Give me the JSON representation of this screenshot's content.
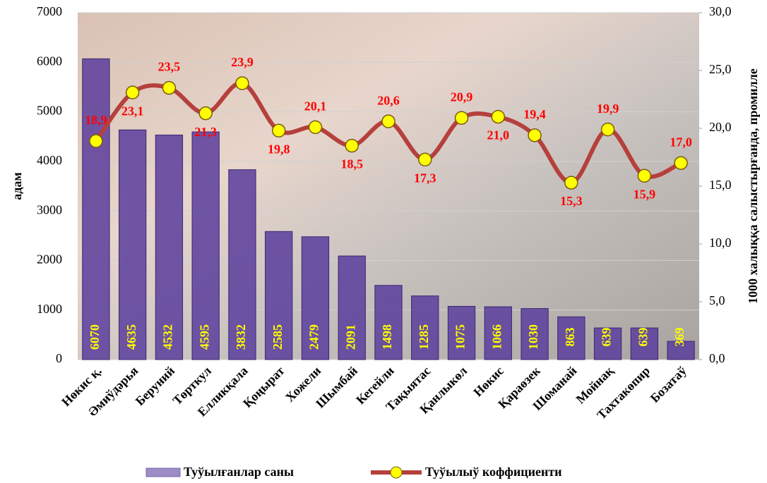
{
  "chart_data": {
    "type": "bar_line",
    "categories": [
      "Нөкис қ.",
      "Әмиўдәрья",
      "Беруний",
      "Төрткул",
      "Елликқала",
      "Қоңырат",
      "Хожели",
      "Шымбай",
      "Кегейли",
      "Тақыятас",
      "Қанлыкөл",
      "Нөкис",
      "Қараөзек",
      "Шоманай",
      "Мойнақ",
      "Тахтакөпир",
      "Бозатаў"
    ],
    "series": [
      {
        "name": "Туўылғанлар саны",
        "color": "#5a3d9c",
        "values": [
          6070,
          4635,
          4532,
          4595,
          3832,
          2585,
          2479,
          2091,
          1498,
          1285,
          1075,
          1066,
          1030,
          863,
          639,
          639,
          369
        ]
      },
      {
        "name": "Туўылыў коффициенти",
        "color": "#b5403c",
        "axis": "y2",
        "marker_color": "#ffff00",
        "values": [
          18.9,
          23.1,
          23.5,
          21.3,
          23.9,
          19.8,
          20.1,
          18.5,
          20.6,
          17.3,
          20.9,
          21.0,
          19.4,
          15.3,
          19.9,
          15.9,
          17.0
        ],
        "value_labels": [
          "18,9",
          "23,1",
          "23,5",
          "21,3",
          "23,9",
          "19,8",
          "20,1",
          "18,5",
          "20,6",
          "17,3",
          "20,9",
          "21,0",
          "19,4",
          "15,3",
          "19,9",
          "15,9",
          "17,0"
        ]
      }
    ],
    "ylabel": "адам",
    "y2label": "1000 халыққа салыстырғанда, промилле",
    "ylim": [
      0,
      7000
    ],
    "yticks": [
      0,
      1000,
      2000,
      3000,
      4000,
      5000,
      6000,
      7000
    ],
    "y2lim": [
      0,
      30
    ],
    "y2ticks": [
      {
        "value": 0,
        "label": "0,0"
      },
      {
        "value": 5,
        "label": "5,0"
      },
      {
        "value": 10,
        "label": "10,0"
      },
      {
        "value": 15,
        "label": "15,0"
      },
      {
        "value": 20,
        "label": "20,0"
      },
      {
        "value": 25,
        "label": "25,0"
      },
      {
        "value": 30,
        "label": "30,0"
      }
    ],
    "grid": true,
    "legend": "bottom"
  }
}
